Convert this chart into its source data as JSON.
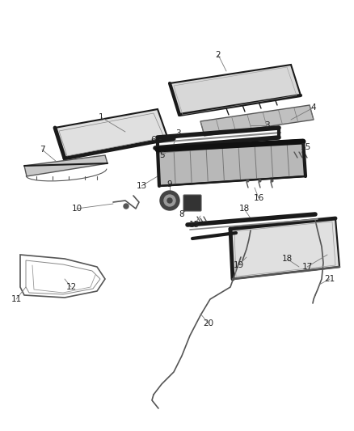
{
  "background_color": "#ffffff",
  "line_color": "#3a3a3a",
  "fig_width": 4.38,
  "fig_height": 5.33,
  "dpi": 100,
  "label_fontsize": 7.5,
  "label_color": "#222222"
}
